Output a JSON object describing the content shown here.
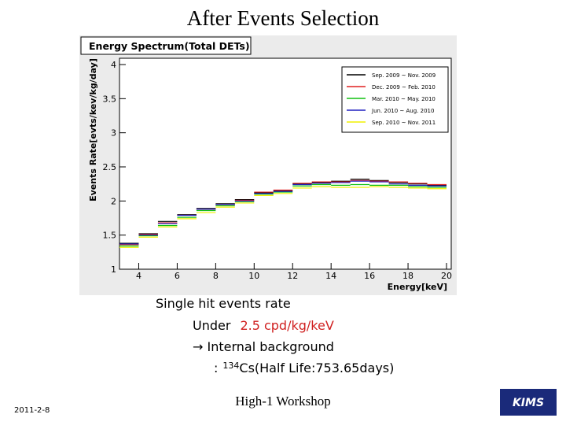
{
  "slide": {
    "title": "After Events Selection",
    "line1": "Single hit events rate",
    "line2": {
      "prefix": "Under",
      "highlight": "2.5 cpd/kg/keV"
    },
    "line3": "→ Internal background",
    "line4": {
      "prefix": ":",
      "sup": "134",
      "rest": "Cs(Half Life:753.65days)"
    },
    "date": "2011-2-8",
    "footer": "High-1 Workshop",
    "logo": "KIMS"
  },
  "chart_data": {
    "type": "histogram",
    "title": "Energy Spectrum(Total DETs)",
    "x_label": "Energy[keV]",
    "y_label": "Events Rate[evts/kev/kg/day]",
    "bins": [
      3,
      4,
      5,
      6,
      7,
      8,
      9,
      10,
      11,
      12,
      13,
      14,
      15,
      16,
      17,
      18,
      19,
      20
    ],
    "series": [
      {
        "name": "Sep. 2009 ~ Nov. 2009",
        "color": "#000000",
        "values": [
          1.38,
          1.52,
          1.7,
          1.8,
          1.89,
          1.96,
          2.02,
          2.12,
          2.15,
          2.25,
          2.27,
          2.29,
          2.32,
          2.3,
          2.27,
          2.25,
          2.23
        ]
      },
      {
        "name": "Dec. 2009 ~ Feb. 2010",
        "color": "#e02020",
        "values": [
          1.36,
          1.51,
          1.68,
          1.79,
          1.88,
          1.95,
          2.01,
          2.13,
          2.16,
          2.26,
          2.28,
          2.28,
          2.3,
          2.29,
          2.28,
          2.26,
          2.24
        ]
      },
      {
        "name": "Mar. 2010 ~ May. 2010",
        "color": "#10c010",
        "values": [
          1.34,
          1.49,
          1.64,
          1.76,
          1.86,
          1.93,
          1.99,
          2.1,
          2.13,
          2.22,
          2.24,
          2.23,
          2.24,
          2.23,
          2.23,
          2.21,
          2.2
        ]
      },
      {
        "name": "Jun. 2010 ~ Aug. 2010",
        "color": "#2020c0",
        "values": [
          1.37,
          1.5,
          1.67,
          1.79,
          1.88,
          1.95,
          2.0,
          2.11,
          2.14,
          2.24,
          2.26,
          2.27,
          2.29,
          2.28,
          2.25,
          2.23,
          2.22
        ]
      },
      {
        "name": "Sep. 2010 ~ Nov. 2011",
        "color": "#f0f000",
        "values": [
          1.32,
          1.47,
          1.62,
          1.74,
          1.83,
          1.91,
          1.97,
          2.08,
          2.11,
          2.19,
          2.21,
          2.2,
          2.2,
          2.21,
          2.2,
          2.19,
          2.18
        ]
      }
    ],
    "xlim": [
      3,
      20
    ],
    "ylim": [
      1,
      4
    ],
    "xticks": [
      4,
      6,
      8,
      10,
      12,
      14,
      16,
      18,
      20
    ],
    "yticks": [
      1,
      1.5,
      2,
      2.5,
      3,
      3.5,
      4
    ],
    "legend": "top-right"
  }
}
